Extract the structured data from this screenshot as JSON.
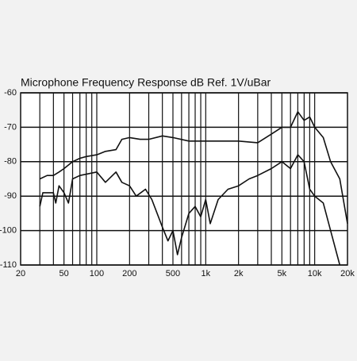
{
  "chart_data": {
    "type": "line",
    "title": "Microphone Frequency Response   dB Ref. 1V/uBar",
    "xscale": "log",
    "xlim": [
      20,
      20000
    ],
    "xticks": [
      20,
      50,
      100,
      200,
      500,
      {
        "value": 1000,
        "label": "1k"
      },
      {
        "value": 2000,
        "label": "2k"
      },
      {
        "value": 5000,
        "label": "5k"
      },
      {
        "value": 10000,
        "label": "10k"
      },
      {
        "value": 20000,
        "label": "20k"
      }
    ],
    "xgrid": [
      30,
      40,
      50,
      60,
      70,
      80,
      90,
      100,
      200,
      300,
      400,
      500,
      600,
      700,
      800,
      900,
      1000,
      2000,
      3000,
      4000,
      5000,
      6000,
      7000,
      8000,
      9000,
      10000
    ],
    "ylim": [
      -110,
      -60
    ],
    "yticks": [
      -110,
      -100,
      -90,
      -80,
      -70,
      -60
    ],
    "grid": true,
    "series": [
      {
        "color": "#111111",
        "x": [
          30,
          35,
          40,
          45,
          50,
          60,
          70,
          80,
          100,
          120,
          150,
          170,
          200,
          250,
          300,
          400,
          500,
          700,
          1000,
          1500,
          2000,
          3000,
          4000,
          5000,
          6000,
          7000,
          8000,
          9000,
          10000,
          12000,
          14000,
          17000,
          20000
        ],
        "values": [
          -85,
          -84,
          -84,
          -83,
          -82,
          -80,
          -79,
          -78.5,
          -78,
          -77,
          -76.5,
          -73.5,
          -73,
          -73.5,
          -73.5,
          -72.5,
          -73,
          -74,
          -74,
          -74,
          -74,
          -74.5,
          -72,
          -70,
          -70,
          -65.5,
          -68,
          -67,
          -70,
          -73,
          -80,
          -85,
          -98
        ]
      },
      {
        "color": "#111111",
        "x": [
          30,
          32,
          40,
          42,
          45,
          50,
          55,
          60,
          70,
          100,
          120,
          150,
          170,
          200,
          230,
          280,
          320,
          400,
          450,
          500,
          550,
          600,
          700,
          800,
          900,
          1000,
          1100,
          1300,
          1600,
          2000,
          2500,
          3000,
          4000,
          5000,
          6000,
          7000,
          8000,
          9000,
          10000,
          12000,
          14000,
          17000
        ],
        "values": [
          -93,
          -89,
          -89,
          -92,
          -87,
          -89,
          -92,
          -85,
          -84,
          -83,
          -86,
          -83,
          -86,
          -87,
          -90,
          -88,
          -91,
          -99,
          -103,
          -100,
          -107,
          -102,
          -95,
          -93,
          -96,
          -91,
          -98,
          -91,
          -88,
          -87,
          -85,
          -84,
          -82,
          -80,
          -82,
          -78,
          -80,
          -88,
          -90,
          -92,
          -100,
          -110
        ]
      }
    ]
  }
}
